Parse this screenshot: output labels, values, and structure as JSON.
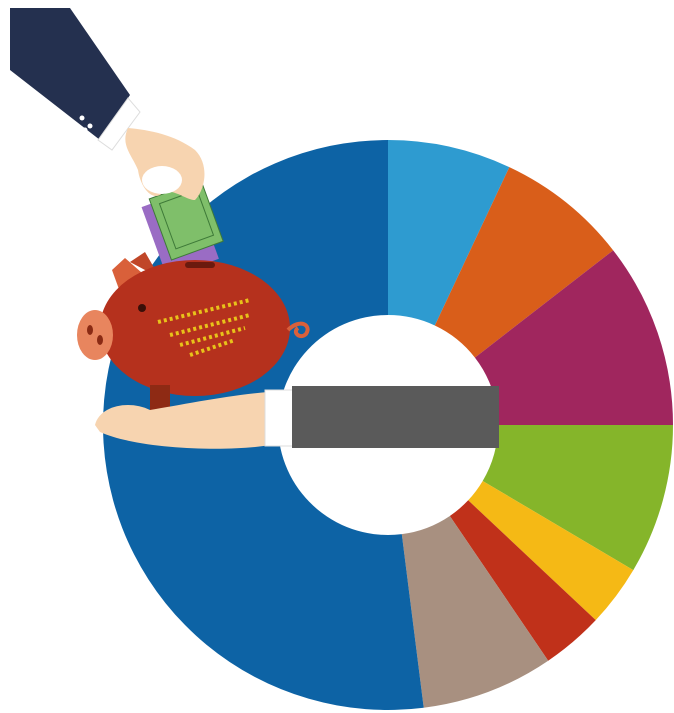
{
  "chart_data": {
    "type": "donut",
    "values": [
      7,
      7.5,
      10.5,
      8.5,
      3.5,
      3.5,
      7.5,
      52
    ],
    "colors": [
      "#2e9bd0",
      "#d95e1a",
      "#a0265e",
      "#85b52a",
      "#f5b915",
      "#c0311a",
      "#a89080",
      "#0d63a5"
    ]
  }
}
